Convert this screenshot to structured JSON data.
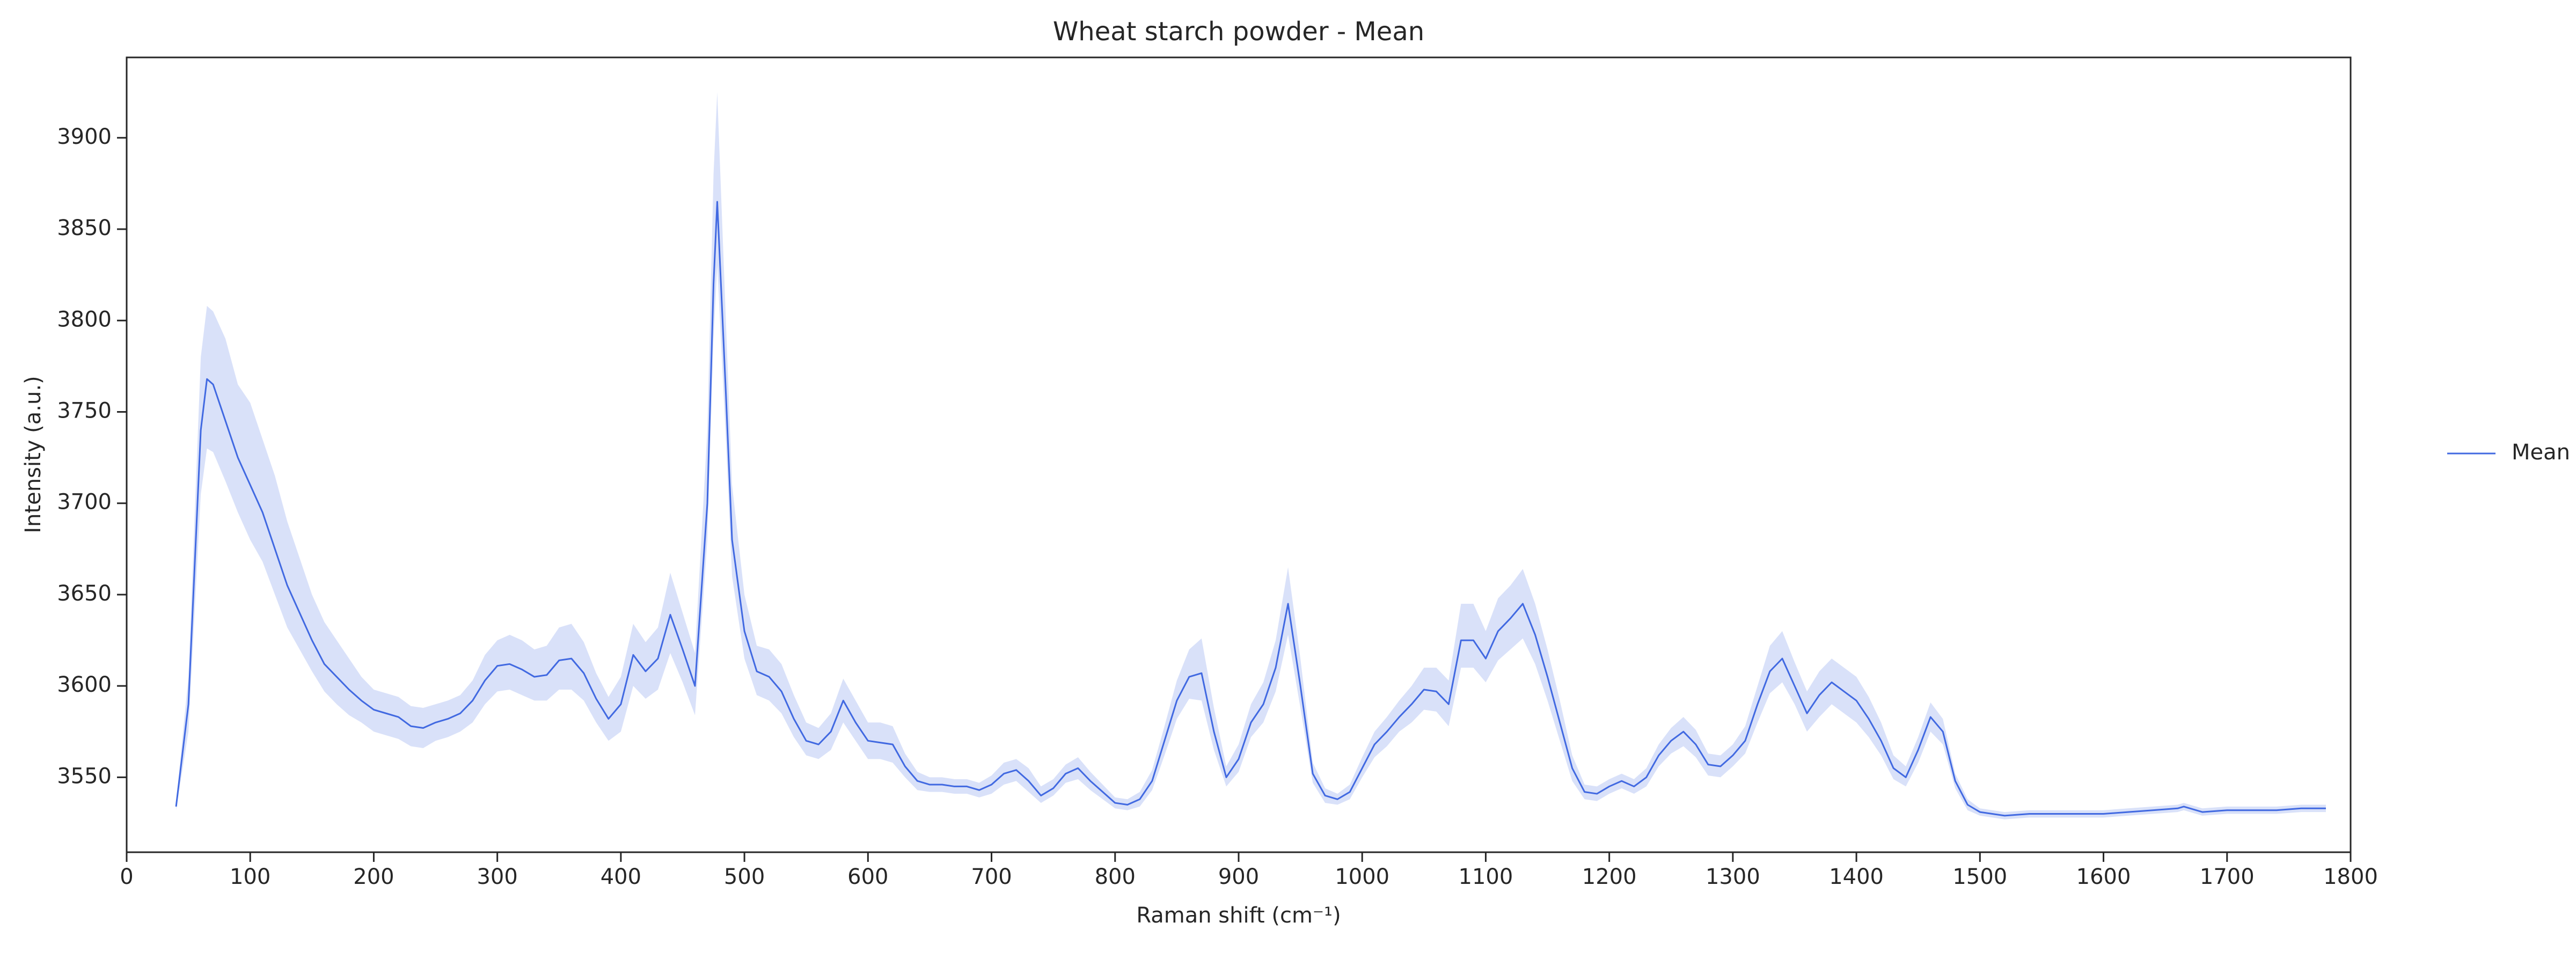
{
  "chart_data": {
    "type": "line",
    "title": "Wheat starch powder - Mean",
    "x_label": "Raman shift (cm⁻¹)",
    "y_label": "Intensity (a.u.)",
    "xlim": [
      0,
      1800
    ],
    "xticks": [
      0,
      100,
      200,
      300,
      400,
      500,
      600,
      700,
      800,
      900,
      1000,
      1100,
      1200,
      1300,
      1400,
      1500,
      1600,
      1700,
      1800
    ],
    "ylim": [
      3509,
      3944
    ],
    "yticks": [
      3550,
      3600,
      3650,
      3700,
      3750,
      3800,
      3850,
      3900
    ],
    "grid": false,
    "legend": "right",
    "x": [
      40,
      50,
      60,
      65,
      70,
      80,
      90,
      100,
      110,
      120,
      130,
      140,
      150,
      160,
      170,
      180,
      190,
      200,
      210,
      220,
      230,
      240,
      250,
      260,
      270,
      280,
      290,
      300,
      310,
      320,
      330,
      340,
      350,
      360,
      370,
      380,
      390,
      400,
      410,
      420,
      430,
      440,
      450,
      460,
      470,
      475,
      478,
      485,
      490,
      500,
      510,
      520,
      530,
      540,
      550,
      560,
      570,
      580,
      590,
      600,
      610,
      620,
      630,
      640,
      650,
      660,
      670,
      680,
      690,
      700,
      710,
      720,
      730,
      740,
      750,
      760,
      770,
      780,
      790,
      800,
      810,
      820,
      830,
      840,
      850,
      860,
      870,
      880,
      890,
      900,
      910,
      920,
      930,
      940,
      950,
      960,
      970,
      980,
      990,
      1000,
      1010,
      1020,
      1030,
      1040,
      1050,
      1060,
      1070,
      1080,
      1090,
      1100,
      1110,
      1120,
      1130,
      1140,
      1150,
      1160,
      1170,
      1180,
      1190,
      1200,
      1210,
      1220,
      1230,
      1240,
      1250,
      1260,
      1270,
      1280,
      1290,
      1300,
      1310,
      1320,
      1330,
      1340,
      1350,
      1360,
      1370,
      1380,
      1390,
      1400,
      1410,
      1420,
      1430,
      1440,
      1450,
      1460,
      1470,
      1480,
      1490,
      1500,
      1520,
      1540,
      1560,
      1580,
      1600,
      1620,
      1640,
      1660,
      1665,
      1680,
      1700,
      1720,
      1740,
      1760,
      1780
    ],
    "series": [
      {
        "name": "Mean",
        "color": "#4169e1",
        "values": [
          3534,
          3590,
          3740,
          3768,
          3765,
          3745,
          3725,
          3710,
          3695,
          3675,
          3655,
          3640,
          3625,
          3612,
          3605,
          3598,
          3592,
          3587,
          3585,
          3583,
          3578,
          3577,
          3580,
          3582,
          3585,
          3592,
          3603,
          3611,
          3612,
          3609,
          3605,
          3606,
          3614,
          3615,
          3607,
          3593,
          3582,
          3590,
          3617,
          3608,
          3615,
          3639,
          3620,
          3600,
          3700,
          3820,
          3865,
          3760,
          3680,
          3630,
          3608,
          3605,
          3597,
          3582,
          3570,
          3568,
          3575,
          3592,
          3580,
          3570,
          3569,
          3568,
          3556,
          3548,
          3546,
          3546,
          3545,
          3545,
          3543,
          3546,
          3552,
          3554,
          3548,
          3540,
          3544,
          3552,
          3555,
          3548,
          3542,
          3536,
          3535,
          3538,
          3548,
          3570,
          3592,
          3605,
          3607,
          3575,
          3550,
          3560,
          3580,
          3590,
          3610,
          3645,
          3600,
          3552,
          3540,
          3538,
          3542,
          3555,
          3568,
          3575,
          3583,
          3590,
          3598,
          3597,
          3590,
          3625,
          3625,
          3615,
          3630,
          3637,
          3645,
          3628,
          3605,
          3580,
          3555,
          3542,
          3541,
          3545,
          3548,
          3545,
          3550,
          3562,
          3570,
          3575,
          3568,
          3557,
          3556,
          3562,
          3570,
          3590,
          3608,
          3615,
          3600,
          3585,
          3595,
          3602,
          3597,
          3592,
          3582,
          3570,
          3555,
          3550,
          3565,
          3583,
          3575,
          3548,
          3535,
          3531,
          3529,
          3530,
          3530,
          3530,
          3530,
          3531,
          3532,
          3533,
          3534,
          3531,
          3532,
          3532,
          3532,
          3533,
          3533
        ],
        "lower": [
          3532,
          3575,
          3705,
          3730,
          3728,
          3712,
          3695,
          3680,
          3668,
          3650,
          3632,
          3620,
          3608,
          3597,
          3590,
          3584,
          3580,
          3575,
          3573,
          3571,
          3567,
          3566,
          3570,
          3572,
          3575,
          3580,
          3590,
          3597,
          3598,
          3595,
          3592,
          3592,
          3598,
          3598,
          3592,
          3580,
          3570,
          3575,
          3600,
          3593,
          3598,
          3618,
          3602,
          3584,
          3680,
          3790,
          3830,
          3735,
          3660,
          3615,
          3595,
          3592,
          3585,
          3572,
          3562,
          3560,
          3565,
          3580,
          3570,
          3560,
          3560,
          3558,
          3550,
          3543,
          3542,
          3542,
          3541,
          3541,
          3539,
          3541,
          3546,
          3548,
          3542,
          3536,
          3540,
          3547,
          3549,
          3543,
          3538,
          3533,
          3532,
          3534,
          3543,
          3562,
          3582,
          3593,
          3592,
          3565,
          3545,
          3553,
          3572,
          3580,
          3597,
          3628,
          3588,
          3547,
          3536,
          3535,
          3538,
          3550,
          3561,
          3567,
          3575,
          3580,
          3587,
          3586,
          3578,
          3610,
          3610,
          3602,
          3614,
          3620,
          3626,
          3612,
          3592,
          3570,
          3548,
          3538,
          3537,
          3541,
          3544,
          3541,
          3545,
          3556,
          3563,
          3567,
          3561,
          3551,
          3550,
          3556,
          3563,
          3580,
          3596,
          3602,
          3590,
          3575,
          3583,
          3590,
          3585,
          3580,
          3572,
          3562,
          3549,
          3545,
          3558,
          3575,
          3568,
          3544,
          3532,
          3529,
          3527,
          3528,
          3528,
          3528,
          3528,
          3529,
          3530,
          3531,
          3532,
          3529,
          3530,
          3530,
          3530,
          3531,
          3531
        ],
        "upper": [
          3536,
          3605,
          3780,
          3808,
          3805,
          3790,
          3765,
          3755,
          3735,
          3715,
          3690,
          3670,
          3650,
          3635,
          3625,
          3615,
          3605,
          3598,
          3596,
          3594,
          3589,
          3588,
          3590,
          3592,
          3595,
          3603,
          3617,
          3625,
          3628,
          3625,
          3620,
          3622,
          3632,
          3634,
          3624,
          3607,
          3594,
          3605,
          3634,
          3624,
          3632,
          3662,
          3640,
          3618,
          3740,
          3880,
          3925,
          3800,
          3710,
          3650,
          3622,
          3620,
          3612,
          3595,
          3580,
          3577,
          3585,
          3604,
          3592,
          3580,
          3580,
          3578,
          3563,
          3553,
          3550,
          3550,
          3549,
          3549,
          3547,
          3551,
          3558,
          3560,
          3555,
          3545,
          3549,
          3557,
          3561,
          3553,
          3546,
          3539,
          3538,
          3542,
          3554,
          3578,
          3603,
          3620,
          3626,
          3588,
          3556,
          3568,
          3590,
          3602,
          3625,
          3665,
          3615,
          3558,
          3544,
          3541,
          3546,
          3561,
          3575,
          3583,
          3592,
          3600,
          3610,
          3610,
          3603,
          3645,
          3645,
          3630,
          3648,
          3655,
          3664,
          3645,
          3620,
          3592,
          3562,
          3546,
          3545,
          3549,
          3552,
          3549,
          3555,
          3568,
          3577,
          3583,
          3576,
          3563,
          3562,
          3568,
          3578,
          3600,
          3622,
          3630,
          3613,
          3597,
          3608,
          3615,
          3610,
          3605,
          3594,
          3580,
          3562,
          3556,
          3572,
          3591,
          3582,
          3552,
          3538,
          3533,
          3531,
          3532,
          3532,
          3532,
          3532,
          3533,
          3534,
          3535,
          3536,
          3533,
          3534,
          3534,
          3534,
          3535,
          3535
        ]
      }
    ]
  }
}
